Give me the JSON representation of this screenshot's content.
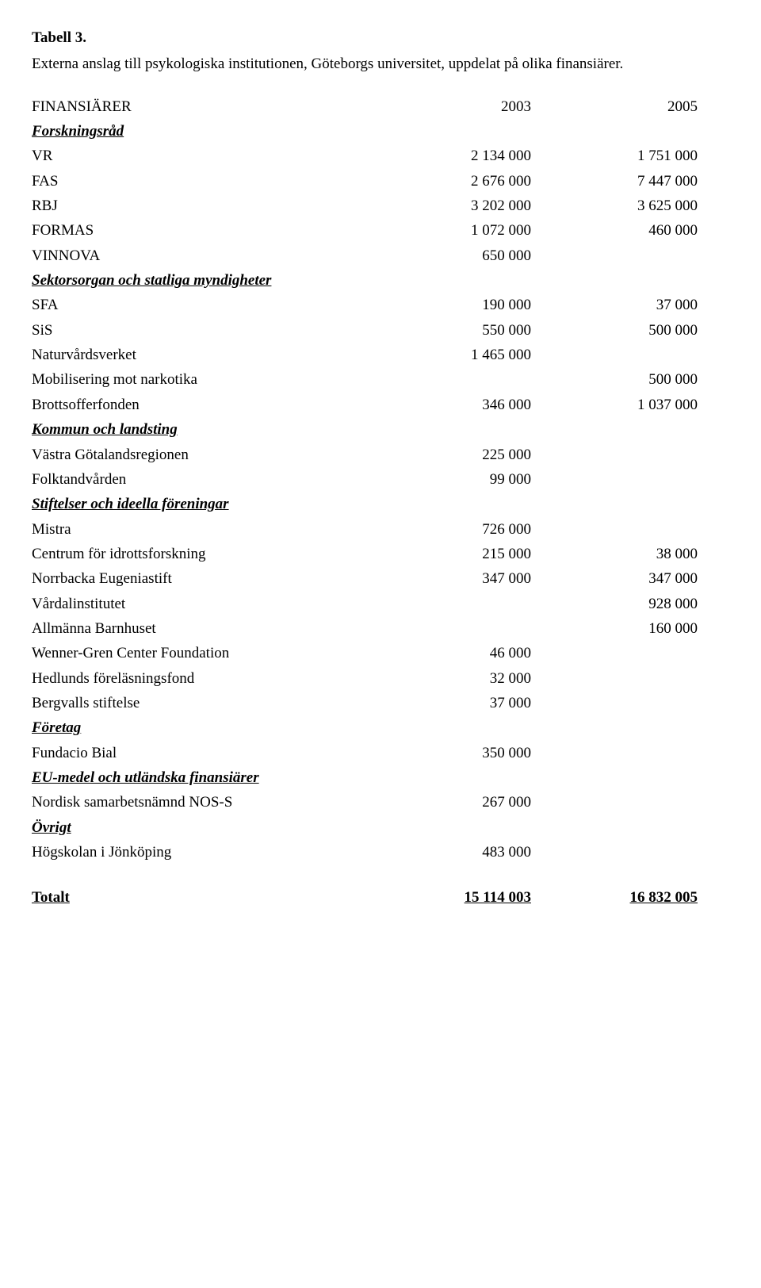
{
  "title": "Tabell 3.",
  "subtitle": "Externa anslag till psykologiska institutionen, Göteborgs universitet, uppdelat på olika finansiärer.",
  "header": {
    "label": "FINANSIÄRER",
    "col_a": "2003",
    "col_b": "2005"
  },
  "sections": {
    "forskningsrad": {
      "heading": "Forskningsråd",
      "rows": [
        {
          "label": "VR",
          "a": "2 134 000",
          "b": "1 751 000"
        },
        {
          "label": "FAS",
          "a": "2 676 000",
          "b": "7 447 000"
        },
        {
          "label": "RBJ",
          "a": "3 202 000",
          "b": "3 625 000"
        },
        {
          "label": "FORMAS",
          "a": "1 072 000",
          "b": "460 000"
        },
        {
          "label": "VINNOVA",
          "a": "650 000",
          "b": ""
        }
      ]
    },
    "sektorsorgan": {
      "heading": "Sektorsorgan och statliga myndigheter",
      "rows": [
        {
          "label": "SFA",
          "a": "190 000",
          "b": "37 000"
        },
        {
          "label": "SiS",
          "a": "550 000",
          "b": "500 000"
        },
        {
          "label": "Naturvårdsverket",
          "a": "1 465 000",
          "b": ""
        },
        {
          "label": "Mobilisering mot narkotika",
          "a": "",
          "b": "500 000"
        },
        {
          "label": "Brottsofferfonden",
          "a": "346 000",
          "b": "1 037 000"
        }
      ]
    },
    "kommun": {
      "heading": "Kommun och landsting",
      "rows": [
        {
          "label": "Västra Götalandsregionen",
          "a": "225 000",
          "b": ""
        },
        {
          "label": "Folktandvården",
          "a": "99 000",
          "b": ""
        }
      ]
    },
    "stiftelser": {
      "heading": "Stiftelser och ideella föreningar",
      "rows": [
        {
          "label": "Mistra",
          "a": "726 000",
          "b": ""
        },
        {
          "label": "Centrum för idrottsforskning",
          "a": "215 000",
          "b": "38 000"
        },
        {
          "label": "Norrbacka Eugeniastift",
          "a": "347 000",
          "b": "347 000"
        },
        {
          "label": "Vårdalinstitutet",
          "a": "",
          "b": "928 000"
        },
        {
          "label": "Allmänna Barnhuset",
          "a": "",
          "b": "160 000"
        },
        {
          "label": "Wenner-Gren Center Foundation",
          "a": "46 000",
          "b": ""
        },
        {
          "label": "Hedlunds föreläsningsfond",
          "a": "32 000",
          "b": ""
        },
        {
          "label": "Bergvalls stiftelse",
          "a": "37 000",
          "b": ""
        }
      ]
    },
    "foretag": {
      "heading": "Företag",
      "rows": [
        {
          "label": "Fundacio Bial",
          "a": "350 000",
          "b": ""
        }
      ]
    },
    "eumedel": {
      "heading": "EU-medel och utländska finansiärer",
      "rows": [
        {
          "label": "Nordisk samarbetsnämnd NOS-S",
          "a": "267 000",
          "b": ""
        }
      ]
    },
    "ovrigt": {
      "heading": "Övrigt",
      "rows": [
        {
          "label": "Högskolan i Jönköping",
          "a": "483 000",
          "b": ""
        }
      ]
    }
  },
  "total": {
    "label": "Totalt",
    "a": "15 114 003",
    "b": "16 832 005"
  }
}
